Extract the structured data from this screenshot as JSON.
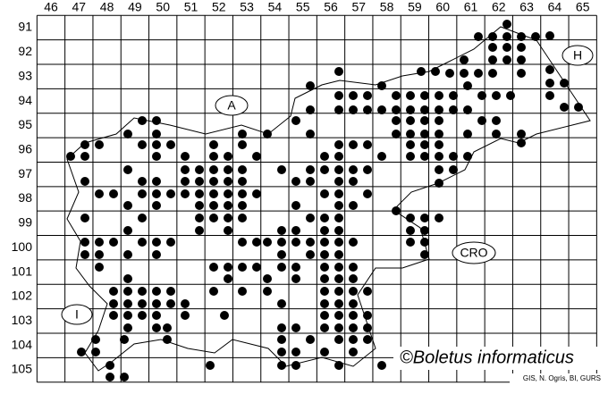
{
  "columns": [
    46,
    47,
    48,
    49,
    50,
    51,
    52,
    53,
    54,
    55,
    56,
    57,
    58,
    59,
    60,
    61,
    62,
    63,
    64,
    65
  ],
  "rows": [
    91,
    92,
    93,
    94,
    95,
    96,
    97,
    98,
    99,
    100,
    101,
    102,
    103,
    104,
    105
  ],
  "regions": [
    {
      "label": "A"
    },
    {
      "label": "H"
    },
    {
      "label": "CRO"
    },
    {
      "label": "I"
    }
  ],
  "credit": "©Boletus informaticus",
  "source": "GIS, N. Ogris, BI, GURS"
}
